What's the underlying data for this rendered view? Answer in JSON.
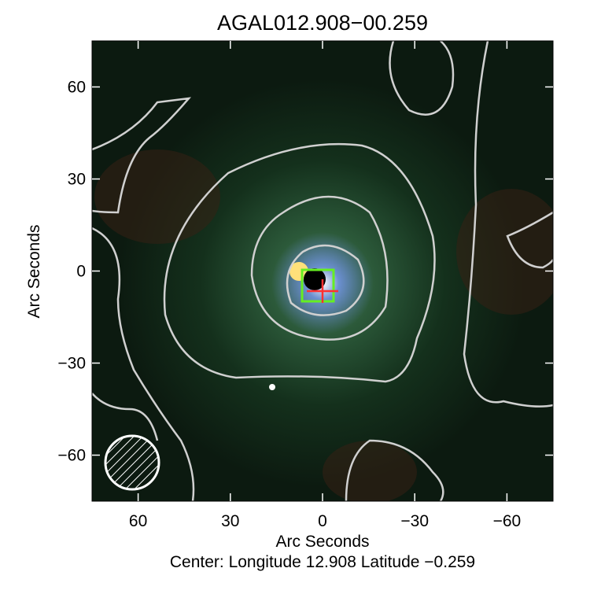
{
  "chart_data": {
    "type": "image",
    "title": "AGAL012.908−00.259",
    "xlabel": "Arc Seconds",
    "ylabel": "Arc Seconds",
    "subtitle": "Center:  Longitude 12.908 Latitude −0.259",
    "xlim": [
      75,
      -75
    ],
    "ylim": [
      -75,
      75
    ],
    "xticks": [
      60,
      30,
      0,
      {
        "value": -30,
        "label": "−30"
      },
      {
        "value": -60,
        "label": "−60"
      }
    ],
    "yticks": [
      {
        "value": -60,
        "label": "−60"
      },
      {
        "value": -30,
        "label": "−30"
      },
      0,
      30,
      60
    ]
  }
}
